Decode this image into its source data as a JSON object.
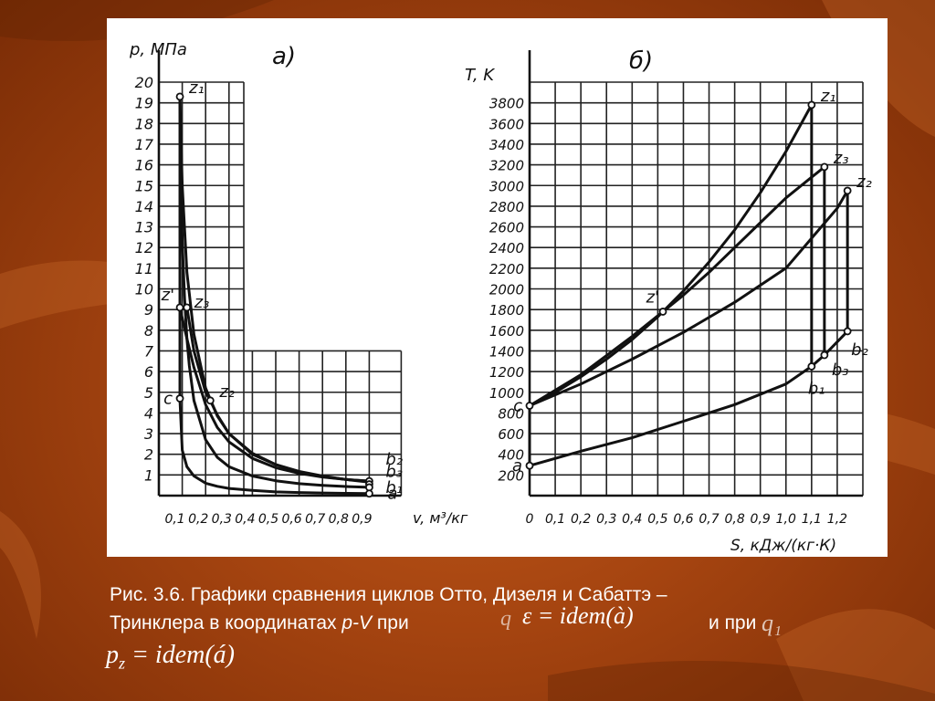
{
  "figure": {
    "chart_data": [
      {
        "type": "line",
        "panel_label": "а)",
        "ylabel": "p, МПа",
        "xlabel": "v, м³/кг",
        "x_ticks": [
          "0,1",
          "0,2",
          "0,3",
          "0,4",
          "0,5",
          "0,6",
          "0,7",
          "0,8",
          "0,9"
        ],
        "y_ticks": [
          "1",
          "2",
          "3",
          "4",
          "5",
          "6",
          "7",
          "8",
          "9",
          "10",
          "11",
          "12",
          "13",
          "14",
          "15",
          "16",
          "17",
          "18",
          "19",
          "20"
        ],
        "xlim": [
          0,
          1.0
        ],
        "ylim": [
          0,
          20
        ],
        "points": [
          {
            "name": "z1",
            "x": 0.09,
            "y": 19.3,
            "label": "z₁"
          },
          {
            "name": "z'",
            "x": 0.09,
            "y": 9.1,
            "label": "z'"
          },
          {
            "name": "z3",
            "x": 0.12,
            "y": 9.1,
            "label": "z₃"
          },
          {
            "name": "c",
            "x": 0.09,
            "y": 4.7,
            "label": "c"
          },
          {
            "name": "z2",
            "x": 0.22,
            "y": 4.6,
            "label": "z₂"
          },
          {
            "name": "b2",
            "x": 0.9,
            "y": 0.7,
            "label": "b₂"
          },
          {
            "name": "b3",
            "x": 0.9,
            "y": 0.55,
            "label": "b₃"
          },
          {
            "name": "b1",
            "x": 0.9,
            "y": 0.4,
            "label": "b₁"
          },
          {
            "name": "a",
            "x": 0.9,
            "y": 0.1,
            "label": "a"
          }
        ],
        "series": [
          {
            "x": [
              0.09,
              0.1,
              0.12,
              0.15,
              0.2,
              0.25,
              0.3,
              0.4,
              0.5,
              0.6,
              0.7,
              0.8,
              0.9
            ],
            "y": [
              4.7,
              2.2,
              1.4,
              0.95,
              0.6,
              0.45,
              0.35,
              0.25,
              0.18,
              0.15,
              0.13,
              0.11,
              0.1
            ]
          },
          {
            "x": [
              0.09,
              0.1,
              0.11,
              0.12,
              0.13,
              0.15,
              0.2,
              0.25,
              0.3,
              0.4,
              0.5,
              0.6,
              0.7,
              0.8,
              0.9
            ],
            "y": [
              19.3,
              12.3,
              9.5,
              7.6,
              6.3,
              4.6,
              2.7,
              1.85,
              1.4,
              0.95,
              0.72,
              0.58,
              0.5,
              0.44,
              0.4
            ]
          },
          {
            "x": [
              0.09,
              0.12,
              0.15,
              0.2,
              0.25,
              0.3,
              0.4,
              0.5,
              0.6,
              0.7,
              0.8,
              0.9
            ],
            "y": [
              9.1,
              7.6,
              6.2,
              4.4,
              3.3,
              2.6,
              1.8,
              1.35,
              1.08,
              0.9,
              0.78,
              0.7
            ]
          },
          {
            "x": [
              0.12,
              0.15,
              0.2,
              0.22,
              0.25,
              0.3,
              0.4,
              0.5,
              0.6,
              0.7,
              0.8,
              0.9
            ],
            "y": [
              9.1,
              7.0,
              5.0,
              4.6,
              3.9,
              3.0,
              2.0,
              1.5,
              1.15,
              0.92,
              0.78,
              0.7
            ]
          },
          {
            "x": [
              0.09,
              0.1,
              0.12,
              0.15,
              0.2,
              0.25,
              0.3,
              0.4,
              0.5,
              0.6,
              0.7,
              0.8,
              0.9
            ],
            "y": [
              19.3,
              15.0,
              10.8,
              7.8,
              5.2,
              3.85,
              3.0,
              2.05,
              1.5,
              1.17,
              0.95,
              0.78,
              0.65
            ]
          }
        ],
        "verticals": [
          {
            "x": 0.09,
            "y": [
              4.7,
              19.3
            ]
          },
          {
            "x": 0.9,
            "y": [
              0.1,
              0.7
            ]
          }
        ],
        "horizontals": [
          {
            "y": 9.1,
            "x": [
              0.09,
              0.12
            ]
          }
        ]
      },
      {
        "type": "line",
        "panel_label": "б)",
        "ylabel": "T, K",
        "xlabel": "S, кДж/(кг·К)",
        "x_ticks": [
          "0",
          "0,1",
          "0,2",
          "0,3",
          "0,4",
          "0,5",
          "0,6",
          "0,7",
          "0,8",
          "0,9",
          "1,0",
          "1,1",
          "1,2"
        ],
        "y_ticks": [
          "200",
          "400",
          "600",
          "800",
          "1000",
          "1200",
          "1400",
          "1600",
          "1800",
          "2000",
          "2200",
          "2400",
          "2600",
          "2800",
          "3000",
          "3200",
          "3400",
          "3600",
          "3800"
        ],
        "xlim": [
          0,
          1.3
        ],
        "ylim": [
          0,
          4000
        ],
        "points": [
          {
            "name": "c",
            "x": 0.0,
            "y": 870,
            "label": "c"
          },
          {
            "name": "a",
            "x": 0.0,
            "y": 290,
            "label": "a"
          },
          {
            "name": "z'",
            "x": 0.52,
            "y": 1780,
            "label": "z'"
          },
          {
            "name": "z1",
            "x": 1.1,
            "y": 3780,
            "label": "z₁"
          },
          {
            "name": "z3",
            "x": 1.15,
            "y": 3180,
            "label": "z₃"
          },
          {
            "name": "z2",
            "x": 1.24,
            "y": 2950,
            "label": "z₂"
          },
          {
            "name": "b2",
            "x": 1.24,
            "y": 1590,
            "label": "b₂"
          },
          {
            "name": "b3",
            "x": 1.15,
            "y": 1360,
            "label": "b₃"
          },
          {
            "name": "b1",
            "x": 1.1,
            "y": 1250,
            "label": "b₁"
          }
        ],
        "series": [
          {
            "x": [
              0.0,
              0.2,
              0.4,
              0.6,
              0.8,
              1.0,
              1.1,
              1.15,
              1.24
            ],
            "y": [
              290,
              430,
              560,
              720,
              880,
              1080,
              1250,
              1360,
              1590
            ]
          },
          {
            "x": [
              0.0,
              0.1,
              0.2,
              0.3,
              0.4,
              0.5,
              0.6,
              0.7,
              0.8,
              0.9,
              1.0,
              1.1
            ],
            "y": [
              870,
              1000,
              1150,
              1320,
              1510,
              1730,
              1980,
              2260,
              2570,
              2930,
              3330,
              3780
            ]
          },
          {
            "x": [
              0.0,
              0.2,
              0.4,
              0.52,
              0.6,
              0.7,
              0.8,
              0.9,
              1.0,
              1.1,
              1.15
            ],
            "y": [
              870,
              1170,
              1540,
              1780,
              1940,
              2160,
              2400,
              2640,
              2880,
              3080,
              3180
            ]
          },
          {
            "x": [
              0.0,
              0.2,
              0.4,
              0.6,
              0.8,
              1.0,
              1.2,
              1.24
            ],
            "y": [
              870,
              1080,
              1320,
              1580,
              1870,
              2200,
              2780,
              2950
            ]
          }
        ],
        "verticals": [
          {
            "x": 1.1,
            "y": [
              1250,
              3780
            ]
          },
          {
            "x": 1.15,
            "y": [
              1360,
              3180
            ]
          },
          {
            "x": 1.24,
            "y": [
              1590,
              2950
            ]
          },
          {
            "x": 0.0,
            "y": [
              290,
              870
            ]
          }
        ],
        "horizontals": []
      }
    ]
  },
  "caption": {
    "line1": "Рис. 3.6. Графики сравнения циклов Отто, Дизеля и Сабаттэ –",
    "line2_a": "Тринклера в координатах ",
    "line2_pv": "p-V",
    "line2_b": " при",
    "line2_c": "и при",
    "formula1": "ε = idem(à)",
    "formula1_prefix": "q",
    "formula2": "q₁",
    "formula3_p": "p",
    "formula3_sub": "z",
    "formula3_rest": " = idem(á)"
  },
  "colors": {
    "background": "#a54410",
    "panel": "#ffffff",
    "ink": "#111111",
    "text": "#ffffff"
  }
}
